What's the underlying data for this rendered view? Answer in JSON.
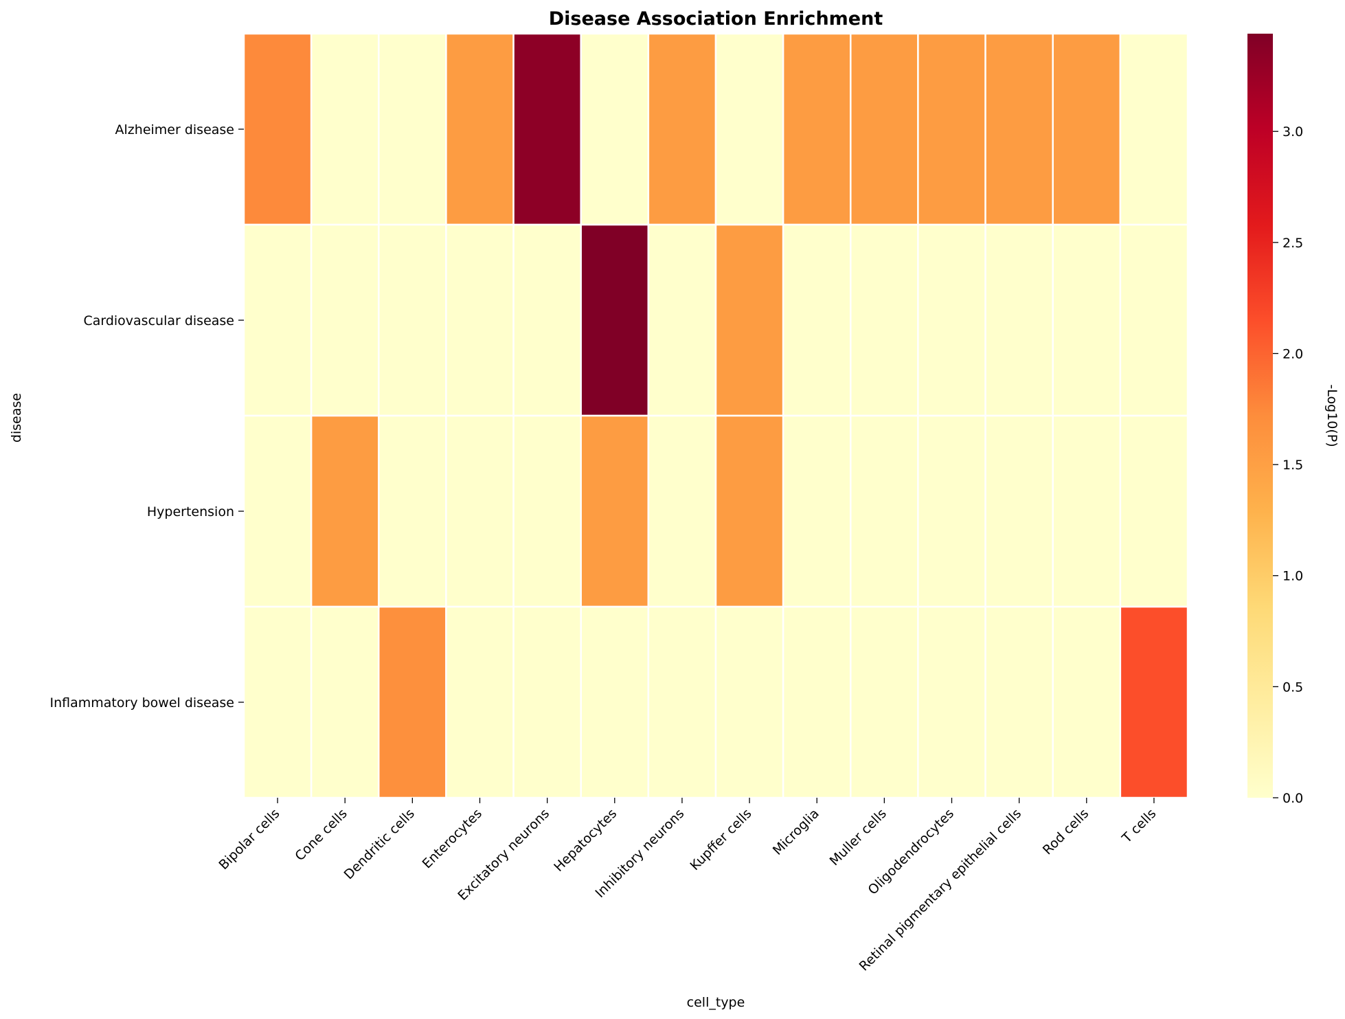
{
  "chart_data": {
    "type": "heatmap",
    "title": "Disease Association Enrichment",
    "xlabel": "cell_type",
    "ylabel": "disease",
    "colorbar_label": "-Log10(P)",
    "colormap": "YlOrRd",
    "vmin": 0,
    "vmax": 3.44,
    "colorbar_ticks": [
      "0.0",
      "0.5",
      "1.0",
      "1.5",
      "2.0",
      "2.5",
      "3.0"
    ],
    "x_categories": [
      "Bipolar cells",
      "Cone cells",
      "Dendritic cells",
      "Enterocytes",
      "Excitatory neurons",
      "Hepatocytes",
      "Inhibitory neurons",
      "Kupffer cells",
      "Microglia",
      "Muller cells",
      "Oligodendrocytes",
      "Retinal pigmentary epithelial cells",
      "Rod cells",
      "T cells"
    ],
    "y_categories": [
      "Alzheimer disease",
      "Cardiovascular disease",
      "Hypertension",
      "Inflammatory bowel disease"
    ],
    "values": [
      [
        1.74,
        0,
        0,
        1.55,
        3.35,
        0,
        1.55,
        0,
        1.55,
        1.55,
        1.55,
        1.55,
        1.55,
        0
      ],
      [
        0,
        0,
        0,
        0,
        0,
        3.44,
        0,
        1.55,
        0,
        0,
        0,
        0,
        0,
        0
      ],
      [
        0,
        1.55,
        0,
        0,
        0,
        1.55,
        0,
        1.55,
        0,
        0,
        0,
        0,
        0,
        0
      ],
      [
        0,
        0,
        1.68,
        0,
        0,
        0,
        0,
        0,
        0,
        0,
        0,
        0,
        0,
        2.15
      ]
    ]
  }
}
